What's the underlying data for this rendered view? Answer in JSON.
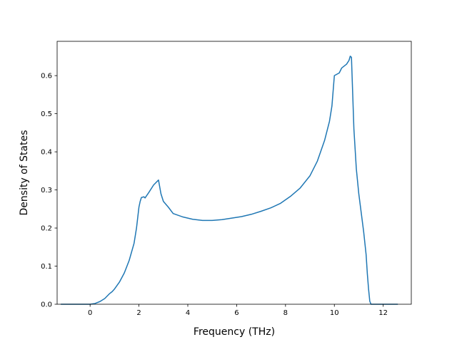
{
  "chart_data": {
    "type": "line",
    "xlabel": "Frequency (THz)",
    "ylabel": "Density of States",
    "xlim": [
      -1.35,
      13.15
    ],
    "ylim": [
      0,
      0.69
    ],
    "xticks": [
      0,
      2,
      4,
      6,
      8,
      10,
      12
    ],
    "yticks": [
      0.0,
      0.1,
      0.2,
      0.3,
      0.4,
      0.5,
      0.6
    ],
    "xtick_labels": [
      "0",
      "2",
      "4",
      "6",
      "8",
      "10",
      "12"
    ],
    "ytick_labels": [
      "0.0",
      "0.1",
      "0.2",
      "0.3",
      "0.4",
      "0.5",
      "0.6"
    ],
    "grid": false,
    "colors": {
      "line": "#1f77b4",
      "axes": "#000000",
      "background": "#ffffff"
    },
    "series": [
      {
        "x": [
          -1.2,
          -0.5,
          0.0,
          0.2,
          0.4,
          0.6,
          0.8,
          0.9,
          1.0,
          1.2,
          1.4,
          1.6,
          1.8,
          1.9,
          2.0,
          2.05,
          2.1,
          2.2,
          2.25,
          2.4,
          2.6,
          2.8,
          2.9,
          3.0,
          3.2,
          3.4,
          3.8,
          4.2,
          4.6,
          5.0,
          5.4,
          5.8,
          6.2,
          6.6,
          7.0,
          7.4,
          7.8,
          8.2,
          8.6,
          9.0,
          9.3,
          9.6,
          9.8,
          9.9,
          9.95,
          10.0,
          10.2,
          10.3,
          10.5,
          10.6,
          10.65,
          10.7,
          10.8,
          10.9,
          11.0,
          11.1,
          11.2,
          11.3,
          11.35,
          11.4,
          11.45,
          11.5,
          11.7,
          12.0,
          12.6
        ],
        "y": [
          0.0,
          0.0,
          0.0,
          0.002,
          0.007,
          0.015,
          0.028,
          0.033,
          0.04,
          0.058,
          0.082,
          0.115,
          0.16,
          0.2,
          0.255,
          0.27,
          0.28,
          0.282,
          0.279,
          0.293,
          0.313,
          0.326,
          0.29,
          0.27,
          0.255,
          0.238,
          0.229,
          0.223,
          0.22,
          0.22,
          0.222,
          0.226,
          0.23,
          0.236,
          0.244,
          0.253,
          0.265,
          0.283,
          0.305,
          0.337,
          0.375,
          0.43,
          0.48,
          0.52,
          0.56,
          0.6,
          0.607,
          0.62,
          0.63,
          0.64,
          0.651,
          0.648,
          0.46,
          0.355,
          0.29,
          0.24,
          0.19,
          0.13,
          0.08,
          0.04,
          0.008,
          0.0,
          0.0,
          0.0,
          0.0
        ]
      }
    ]
  }
}
